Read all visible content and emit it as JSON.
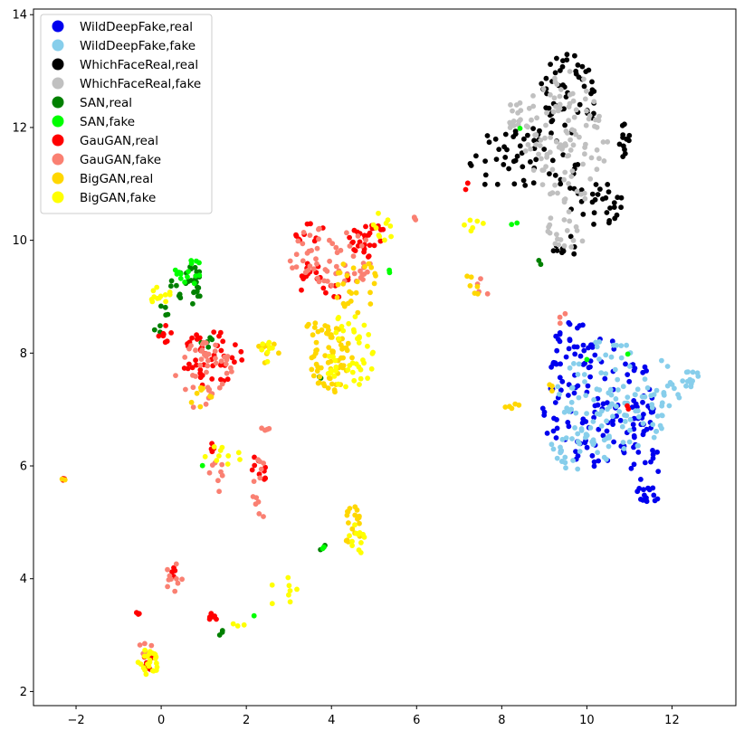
{
  "chart_data": {
    "type": "scatter",
    "title": "",
    "xlabel": "",
    "ylabel": "",
    "xlim": [
      -3.0,
      13.5
    ],
    "ylim": [
      1.75,
      14.1
    ],
    "xticks": [
      "−2",
      "0",
      "2",
      "4",
      "6",
      "8",
      "10",
      "12"
    ],
    "yticks": [
      "2",
      "4",
      "6",
      "8",
      "10",
      "12",
      "14"
    ],
    "xtick_values": [
      -2,
      0,
      2,
      4,
      6,
      8,
      10,
      12
    ],
    "ytick_values": [
      2,
      4,
      6,
      8,
      10,
      12,
      14
    ],
    "grid": false,
    "legend_position": "top-left",
    "series": [
      {
        "name": "WildDeepFake,real",
        "color": "#0000ee",
        "clusters": [
          {
            "cx": 10.3,
            "cy": 7.1,
            "rx": 1.4,
            "ry": 1.2,
            "n": 120
          },
          {
            "cx": 11.4,
            "cy": 6.4,
            "rx": 0.5,
            "ry": 0.9,
            "n": 30
          },
          {
            "cx": 9.7,
            "cy": 8.2,
            "rx": 0.5,
            "ry": 0.35,
            "n": 20
          }
        ]
      },
      {
        "name": "WildDeepFake,fake",
        "color": "#87ceeb",
        "clusters": [
          {
            "cx": 10.8,
            "cy": 7.3,
            "rx": 1.5,
            "ry": 1.0,
            "n": 120
          },
          {
            "cx": 12.4,
            "cy": 7.55,
            "rx": 0.3,
            "ry": 0.15,
            "n": 12
          },
          {
            "cx": 9.9,
            "cy": 6.3,
            "rx": 0.8,
            "ry": 0.4,
            "n": 30
          }
        ]
      },
      {
        "name": "WildDeepFake,real",
        "color": "#0000ee",
        "clusters": [
          {
            "cx": 11.45,
            "cy": 5.5,
            "rx": 0.3,
            "ry": 0.15,
            "n": 12
          }
        ]
      },
      {
        "name": "WhichFaceReal,real",
        "color": "#000000",
        "clusters": [
          {
            "cx": 9.6,
            "cy": 12.6,
            "rx": 0.7,
            "ry": 0.7,
            "n": 55
          },
          {
            "cx": 8.5,
            "cy": 11.4,
            "rx": 1.3,
            "ry": 0.6,
            "n": 55
          },
          {
            "cx": 10.2,
            "cy": 10.7,
            "rx": 0.7,
            "ry": 0.5,
            "n": 30
          },
          {
            "cx": 10.9,
            "cy": 11.7,
            "rx": 0.15,
            "ry": 0.4,
            "n": 12
          },
          {
            "cx": 9.5,
            "cy": 9.8,
            "rx": 0.3,
            "ry": 0.3,
            "n": 10
          }
        ]
      },
      {
        "name": "WhichFaceReal,fake",
        "color": "#c0c0c0",
        "clusters": [
          {
            "cx": 9.5,
            "cy": 11.8,
            "rx": 1.0,
            "ry": 1.2,
            "n": 110
          },
          {
            "cx": 8.4,
            "cy": 12.2,
            "rx": 0.3,
            "ry": 0.3,
            "n": 15
          },
          {
            "cx": 9.5,
            "cy": 10.2,
            "rx": 0.5,
            "ry": 0.4,
            "n": 20
          }
        ]
      },
      {
        "name": "SAN,real",
        "color": "#008000",
        "clusters": [
          {
            "cx": 0.6,
            "cy": 9.2,
            "rx": 0.5,
            "ry": 0.35,
            "n": 30
          },
          {
            "cx": 0.0,
            "cy": 8.6,
            "rx": 0.2,
            "ry": 0.3,
            "n": 8
          },
          {
            "cx": 1.1,
            "cy": 8.2,
            "rx": 0.2,
            "ry": 0.1,
            "n": 5
          },
          {
            "cx": 3.8,
            "cy": 4.55,
            "rx": 0.08,
            "ry": 0.05,
            "n": 3
          },
          {
            "cx": 1.4,
            "cy": 3.05,
            "rx": 0.1,
            "ry": 0.05,
            "n": 3
          },
          {
            "cx": 3.75,
            "cy": 7.6,
            "rx": 0.05,
            "ry": 0.05,
            "n": 2
          },
          {
            "cx": 8.9,
            "cy": 9.6,
            "rx": 0.08,
            "ry": 0.05,
            "n": 2
          }
        ]
      },
      {
        "name": "SAN,fake",
        "color": "#00ff00",
        "clusters": [
          {
            "cx": 0.7,
            "cy": 9.4,
            "rx": 0.4,
            "ry": 0.25,
            "n": 15
          },
          {
            "cx": 5.4,
            "cy": 9.45,
            "rx": 0.05,
            "ry": 0.05,
            "n": 2
          },
          {
            "cx": 3.8,
            "cy": 4.55,
            "rx": 0.05,
            "ry": 0.05,
            "n": 2
          },
          {
            "cx": 8.3,
            "cy": 10.35,
            "rx": 0.1,
            "ry": 0.1,
            "n": 2
          },
          {
            "cx": 8.4,
            "cy": 12.0,
            "rx": 0.05,
            "ry": 0.05,
            "n": 1
          },
          {
            "cx": 10.0,
            "cy": 7.85,
            "rx": 0.05,
            "ry": 0.05,
            "n": 1
          },
          {
            "cx": 10.95,
            "cy": 7.95,
            "rx": 0.05,
            "ry": 0.05,
            "n": 1
          },
          {
            "cx": 2.2,
            "cy": 3.35,
            "rx": 0.05,
            "ry": 0.05,
            "n": 1
          },
          {
            "cx": 0.95,
            "cy": 6.05,
            "rx": 0.05,
            "ry": 0.05,
            "n": 1
          }
        ]
      },
      {
        "name": "GauGAN,real",
        "color": "#ff0000",
        "clusters": [
          {
            "cx": 1.2,
            "cy": 7.9,
            "rx": 0.7,
            "ry": 0.5,
            "n": 45
          },
          {
            "cx": 4.9,
            "cy": 10.0,
            "rx": 0.5,
            "ry": 0.3,
            "n": 30
          },
          {
            "cx": 3.8,
            "cy": 9.3,
            "rx": 0.6,
            "ry": 0.4,
            "n": 20
          },
          {
            "cx": 3.5,
            "cy": 10.1,
            "rx": 0.4,
            "ry": 0.2,
            "n": 10
          },
          {
            "cx": 2.3,
            "cy": 5.9,
            "rx": 0.2,
            "ry": 0.4,
            "n": 10
          },
          {
            "cx": 0.1,
            "cy": 8.3,
            "rx": 0.2,
            "ry": 0.2,
            "n": 8
          },
          {
            "cx": -0.55,
            "cy": 3.4,
            "rx": 0.05,
            "ry": 0.05,
            "n": 3
          },
          {
            "cx": 1.1,
            "cy": 3.3,
            "rx": 0.2,
            "ry": 0.1,
            "n": 6
          },
          {
            "cx": 0.3,
            "cy": 4.1,
            "rx": 0.1,
            "ry": 0.1,
            "n": 4
          },
          {
            "cx": -0.3,
            "cy": 2.5,
            "rx": 0.2,
            "ry": 0.15,
            "n": 6
          },
          {
            "cx": 7.2,
            "cy": 10.95,
            "rx": 0.1,
            "ry": 0.1,
            "n": 3
          },
          {
            "cx": 10.9,
            "cy": 7.0,
            "rx": 0.1,
            "ry": 0.1,
            "n": 2
          },
          {
            "cx": 1.2,
            "cy": 6.3,
            "rx": 0.2,
            "ry": 0.1,
            "n": 5
          }
        ]
      },
      {
        "name": "GauGAN,fake",
        "color": "#fa8072",
        "clusters": [
          {
            "cx": 1.0,
            "cy": 7.6,
            "rx": 0.7,
            "ry": 0.6,
            "n": 45
          },
          {
            "cx": 4.0,
            "cy": 9.7,
            "rx": 1.0,
            "ry": 0.6,
            "n": 60
          },
          {
            "cx": 2.3,
            "cy": 5.6,
            "rx": 0.2,
            "ry": 0.6,
            "n": 12
          },
          {
            "cx": 0.3,
            "cy": 4.0,
            "rx": 0.2,
            "ry": 0.3,
            "n": 10
          },
          {
            "cx": -0.4,
            "cy": 2.8,
            "rx": 0.2,
            "ry": 0.15,
            "n": 6
          },
          {
            "cx": 1.3,
            "cy": 5.8,
            "rx": 0.2,
            "ry": 0.3,
            "n": 8
          },
          {
            "cx": 7.6,
            "cy": 9.2,
            "rx": 0.2,
            "ry": 0.2,
            "n": 4
          },
          {
            "cx": 9.4,
            "cy": 8.6,
            "rx": 0.15,
            "ry": 0.15,
            "n": 3
          },
          {
            "cx": 6.0,
            "cy": 10.3,
            "rx": 0.1,
            "ry": 0.15,
            "n": 3
          },
          {
            "cx": 2.45,
            "cy": 6.65,
            "rx": 0.1,
            "ry": 0.05,
            "n": 4
          }
        ]
      },
      {
        "name": "BigGAN,real",
        "color": "#ffd700",
        "clusters": [
          {
            "cx": 4.0,
            "cy": 7.9,
            "rx": 0.5,
            "ry": 0.6,
            "n": 60
          },
          {
            "cx": 4.5,
            "cy": 9.2,
            "rx": 0.6,
            "ry": 0.5,
            "n": 25
          },
          {
            "cx": 3.7,
            "cy": 8.5,
            "rx": 0.3,
            "ry": 0.2,
            "n": 10
          },
          {
            "cx": 4.5,
            "cy": 4.9,
            "rx": 0.2,
            "ry": 0.4,
            "n": 20
          },
          {
            "cx": 2.5,
            "cy": 8.0,
            "rx": 0.3,
            "ry": 0.2,
            "n": 8
          },
          {
            "cx": 0.9,
            "cy": 7.2,
            "rx": 0.3,
            "ry": 0.2,
            "n": 8
          },
          {
            "cx": 7.3,
            "cy": 9.2,
            "rx": 0.3,
            "ry": 0.2,
            "n": 6
          },
          {
            "cx": 8.3,
            "cy": 7.05,
            "rx": 0.25,
            "ry": 0.05,
            "n": 5
          },
          {
            "cx": 9.2,
            "cy": 7.4,
            "rx": 0.2,
            "ry": 0.1,
            "n": 3
          }
        ]
      },
      {
        "name": "BigGAN,fake",
        "color": "#ffff00",
        "clusters": [
          {
            "cx": 4.4,
            "cy": 8.0,
            "rx": 0.6,
            "ry": 0.7,
            "n": 45
          },
          {
            "cx": 4.6,
            "cy": 4.7,
            "rx": 0.2,
            "ry": 0.3,
            "n": 12
          },
          {
            "cx": -0.3,
            "cy": 2.5,
            "rx": 0.25,
            "ry": 0.25,
            "n": 25
          },
          {
            "cx": 0.0,
            "cy": 9.0,
            "rx": 0.3,
            "ry": 0.2,
            "n": 12
          },
          {
            "cx": 2.8,
            "cy": 3.8,
            "rx": 0.4,
            "ry": 0.3,
            "n": 8
          },
          {
            "cx": 1.5,
            "cy": 6.2,
            "rx": 0.5,
            "ry": 0.2,
            "n": 10
          },
          {
            "cx": 2.5,
            "cy": 8.0,
            "rx": 0.2,
            "ry": 0.2,
            "n": 8
          },
          {
            "cx": 7.4,
            "cy": 10.2,
            "rx": 0.3,
            "ry": 0.2,
            "n": 6
          },
          {
            "cx": 5.2,
            "cy": 10.2,
            "rx": 0.3,
            "ry": 0.3,
            "n": 10
          },
          {
            "cx": 1.8,
            "cy": 3.2,
            "rx": 0.2,
            "ry": 0.05,
            "n": 3
          }
        ]
      },
      {
        "name": "GauGAN,real",
        "color": "#ff0000",
        "clusters": [
          {
            "cx": -2.3,
            "cy": 5.75,
            "rx": 0.05,
            "ry": 0.03,
            "n": 3
          }
        ]
      },
      {
        "name": "BigGAN,real",
        "color": "#ffd700",
        "clusters": [
          {
            "cx": -2.3,
            "cy": 5.75,
            "rx": 0.05,
            "ry": 0.03,
            "n": 2
          }
        ]
      }
    ],
    "legend": [
      {
        "label": "WildDeepFake,real",
        "color": "#0000ee"
      },
      {
        "label": "WildDeepFake,fake",
        "color": "#87ceeb"
      },
      {
        "label": "WhichFaceReal,real",
        "color": "#000000"
      },
      {
        "label": "WhichFaceReal,fake",
        "color": "#c0c0c0"
      },
      {
        "label": "SAN,real",
        "color": "#008000"
      },
      {
        "label": "SAN,fake",
        "color": "#00ff00"
      },
      {
        "label": "GauGAN,real",
        "color": "#ff0000"
      },
      {
        "label": "GauGAN,fake",
        "color": "#fa8072"
      },
      {
        "label": "BigGAN,real",
        "color": "#ffd700"
      },
      {
        "label": "BigGAN,fake",
        "color": "#ffff00"
      }
    ]
  }
}
